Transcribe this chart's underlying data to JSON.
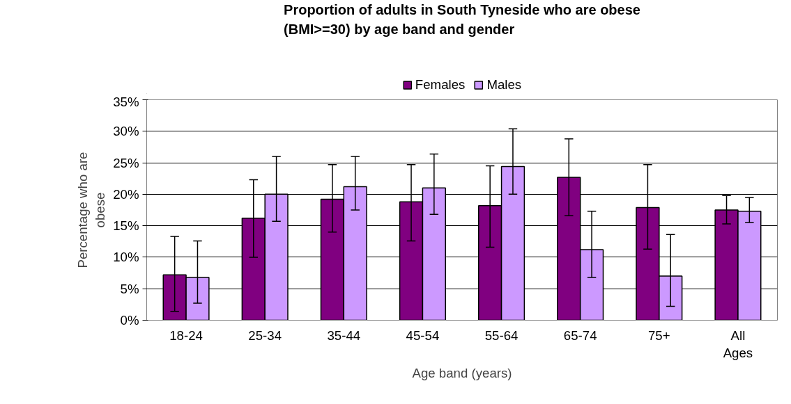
{
  "chart_data": {
    "type": "bar",
    "title": "Proportion of adults in South Tyneside who are obese\n(BMI>=30) by age band and gender",
    "xlabel": "Age band (years)",
    "ylabel": "Percentage who are\nobese",
    "categories": [
      "18-24",
      "25-34",
      "35-44",
      "45-54",
      "55-64",
      "65-74",
      "75+",
      "All Ages"
    ],
    "series": [
      {
        "name": "Females",
        "color": "#800080",
        "values": [
          7.2,
          16.2,
          19.2,
          18.8,
          18.2,
          22.7,
          17.9,
          17.5
        ],
        "errors": [
          [
            1.4,
            13.3
          ],
          [
            10.0,
            22.3
          ],
          [
            14.0,
            24.7
          ],
          [
            12.6,
            24.7
          ],
          [
            11.6,
            24.5
          ],
          [
            16.6,
            28.8
          ],
          [
            11.3,
            24.7
          ],
          [
            15.3,
            19.8
          ]
        ]
      },
      {
        "name": "Males",
        "color": "#cc99ff",
        "values": [
          6.8,
          20.0,
          21.2,
          21.0,
          24.4,
          11.2,
          7.0,
          17.3
        ],
        "errors": [
          [
            2.7,
            12.6
          ],
          [
            15.7,
            26.0
          ],
          [
            17.5,
            26.0
          ],
          [
            16.8,
            26.4
          ],
          [
            20.0,
            30.4
          ],
          [
            6.8,
            17.3
          ],
          [
            2.2,
            13.6
          ],
          [
            15.5,
            19.5
          ]
        ]
      }
    ],
    "ylim": [
      0,
      35
    ],
    "yticks": [
      {
        "value": 0,
        "label": "0%"
      },
      {
        "value": 5,
        "label": "5%"
      },
      {
        "value": 10,
        "label": "10%"
      },
      {
        "value": 15,
        "label": "15%"
      },
      {
        "value": 20,
        "label": "20%"
      },
      {
        "value": 25,
        "label": "25%"
      },
      {
        "value": 30,
        "label": "30%"
      },
      {
        "value": 35,
        "label": "35%"
      }
    ],
    "grid": "y",
    "legend": "top"
  }
}
